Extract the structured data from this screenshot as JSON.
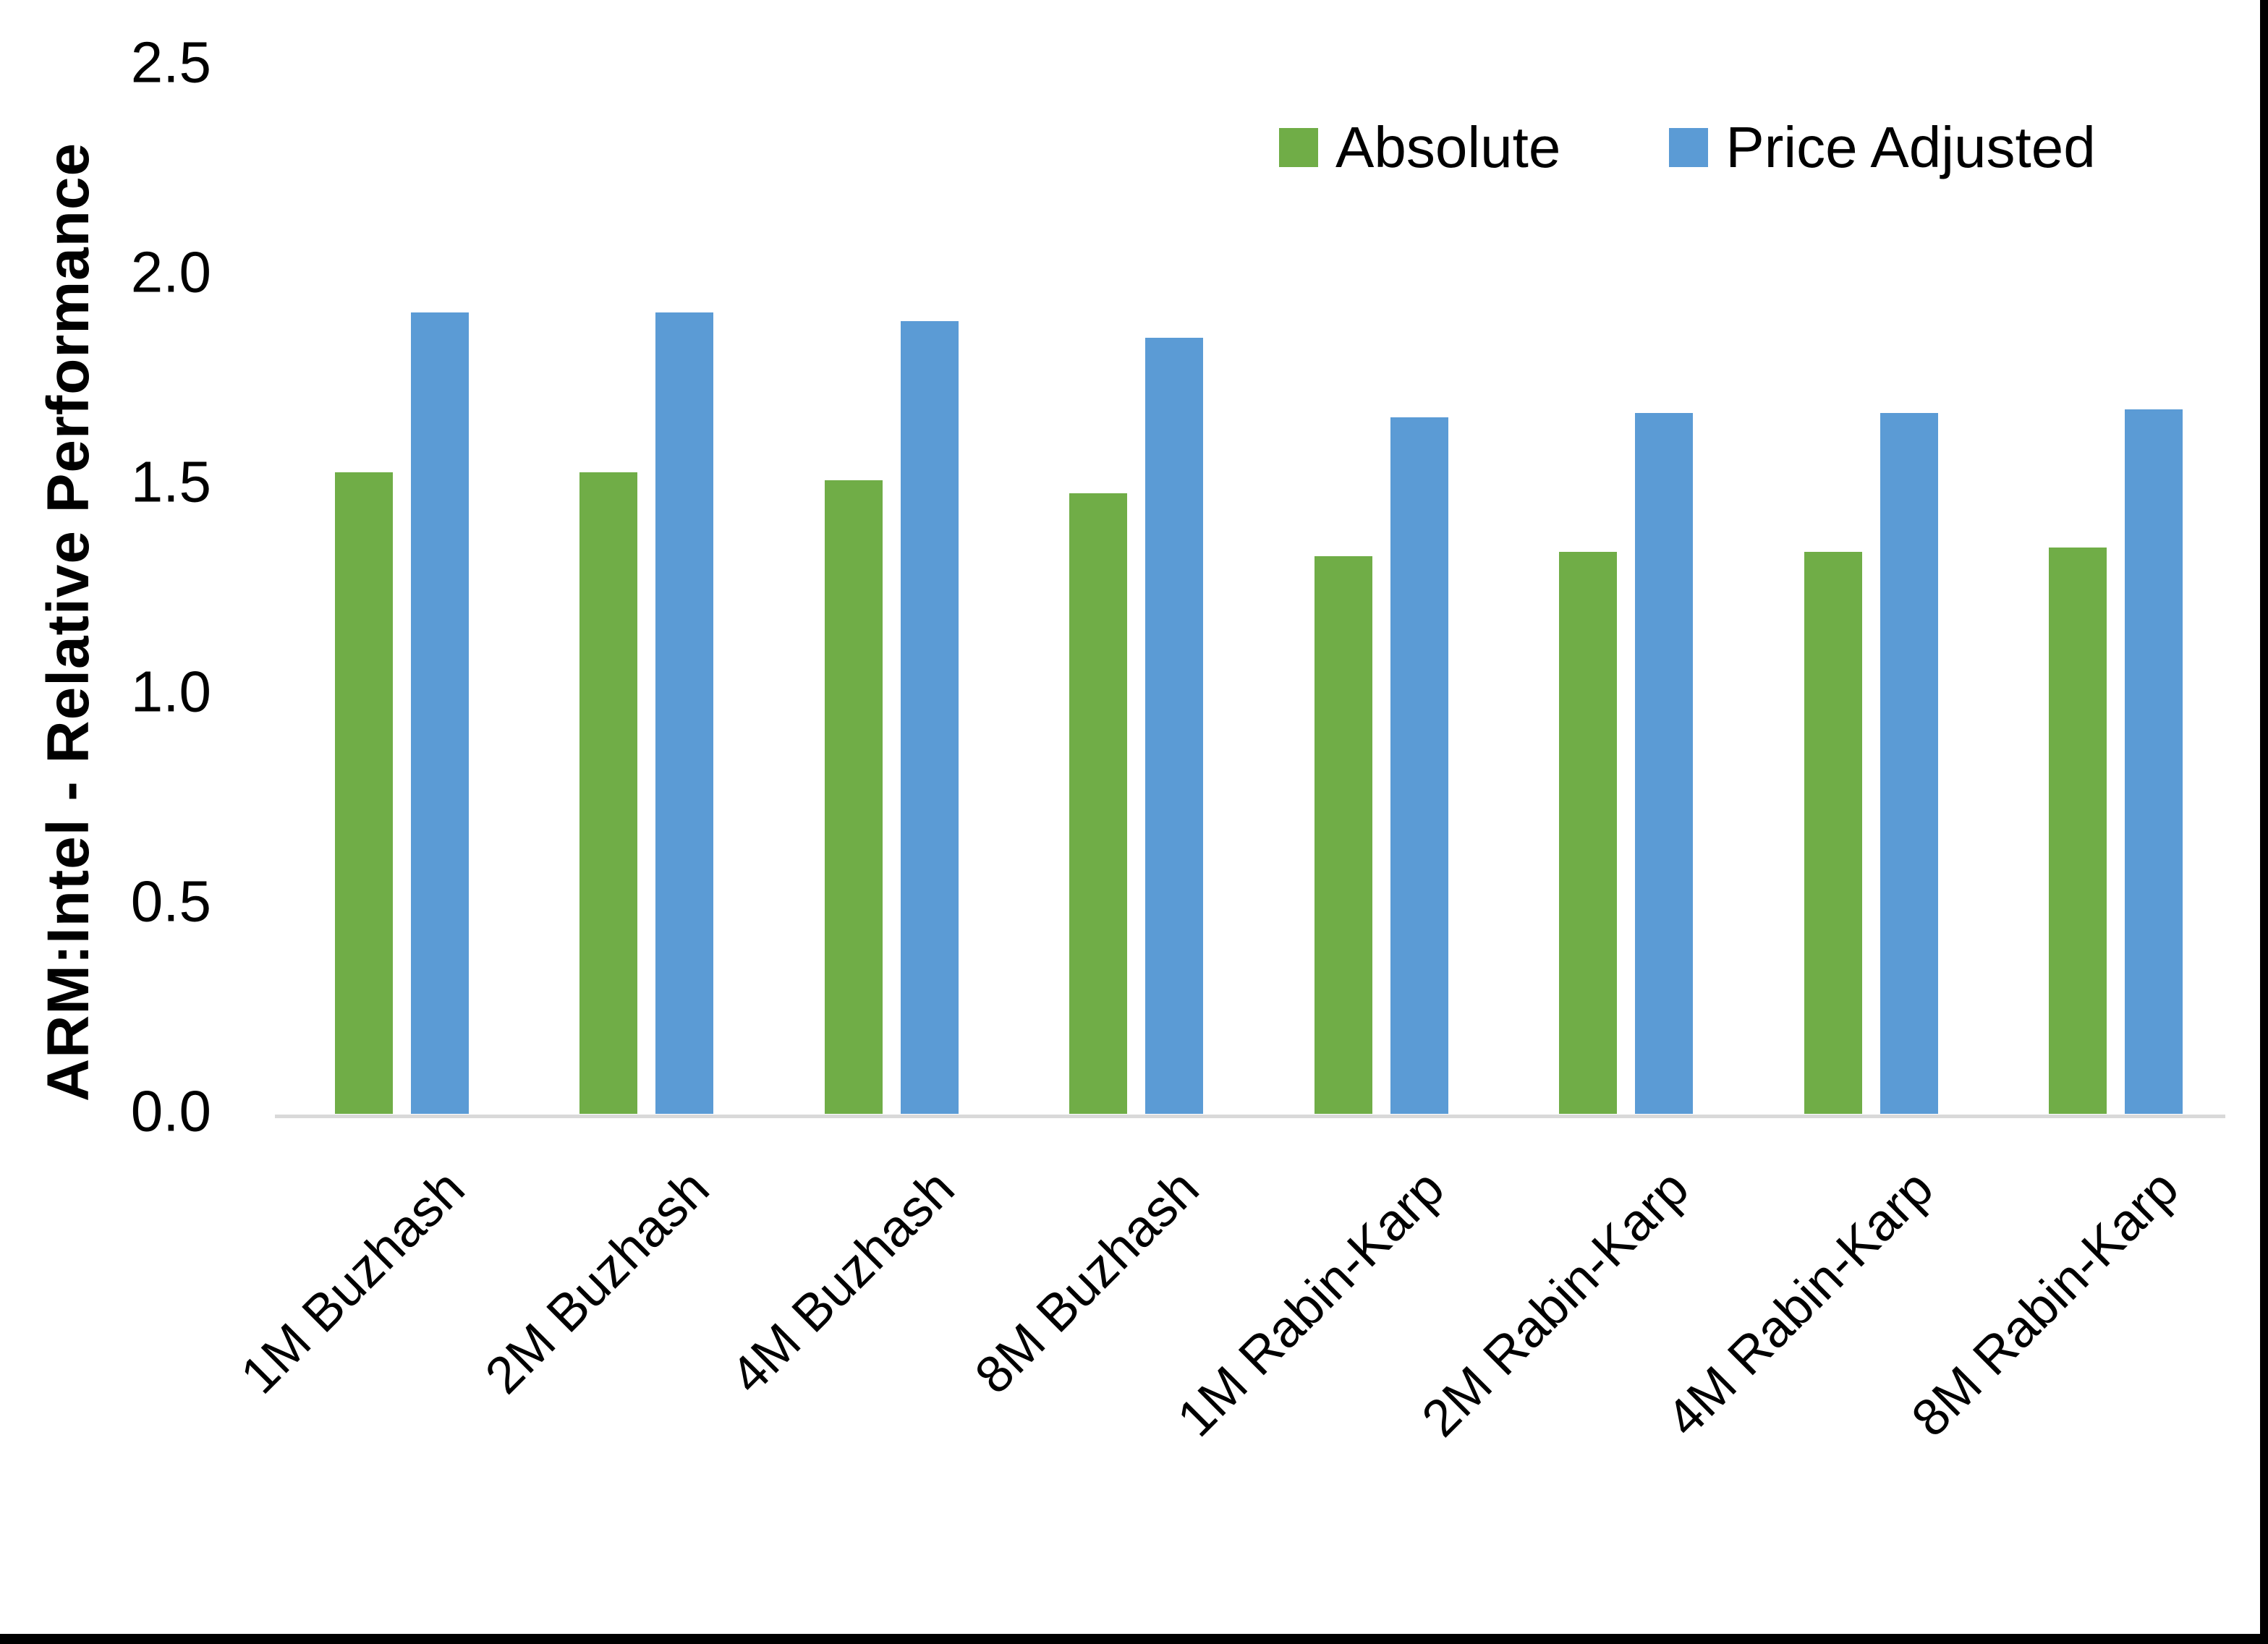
{
  "chart_data": {
    "type": "bar",
    "title": "",
    "xlabel": "",
    "ylabel": "ARM:Intel - Relative Performance",
    "ylim": [
      0.0,
      2.5
    ],
    "ytick_labels": [
      "0.0",
      "0.5",
      "1.0",
      "1.5",
      "2.0",
      "2.5"
    ],
    "ytick_values": [
      0.0,
      0.5,
      1.0,
      1.5,
      2.0,
      2.5
    ],
    "grid": false,
    "legend_position": "top-right",
    "categories": [
      "1M Buzhash",
      "2M Buzhash",
      "4M Buzhash",
      "8M Buzhash",
      "1M Rabin-Karp",
      "2M Rabin-Karp",
      "4M Rabin-Karp",
      "8M Rabin-Karp"
    ],
    "series": [
      {
        "name": "Absolute",
        "color": "#70AD47",
        "values": [
          1.53,
          1.53,
          1.51,
          1.48,
          1.33,
          1.34,
          1.34,
          1.35
        ]
      },
      {
        "name": "Price Adjusted",
        "color": "#5B9BD5",
        "values": [
          1.91,
          1.91,
          1.89,
          1.85,
          1.66,
          1.67,
          1.67,
          1.68
        ]
      }
    ]
  },
  "colors": {
    "background": "#FFFFFF",
    "text": "#000000",
    "axis_line": "#D9D9D9",
    "series_absolute": "#70AD47",
    "series_price_adjusted": "#5B9BD5",
    "frame_border": "#000000"
  }
}
